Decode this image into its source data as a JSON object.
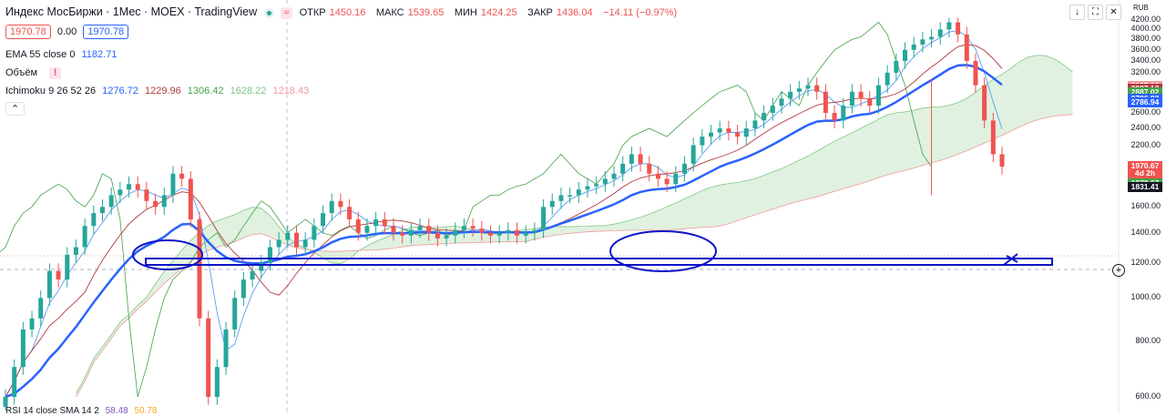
{
  "header": {
    "title": "Индекс МосБиржи · 1Мес · MOEX · TradingView",
    "ohlc": [
      {
        "label": "ОТКР",
        "value": "1450.16"
      },
      {
        "label": "МАКС",
        "value": "1539.65"
      },
      {
        "label": "МИН",
        "value": "1424.25"
      },
      {
        "label": "ЗАКР",
        "value": "1436.04"
      }
    ],
    "change": "−14.11 (−0.97%)",
    "wave_symbol": "≈",
    "currency": "RUB"
  },
  "order": {
    "sell": "1970.78",
    "spread": "0.00",
    "buy": "1970.78"
  },
  "indicators": {
    "ema": {
      "name": "EMA 55 close 0",
      "value": "1182.71"
    },
    "volume": {
      "name": "Объём",
      "warn": "!"
    },
    "ichimoku": {
      "name": "Ichimoku 9 26 52 26",
      "values": [
        "1276.72",
        "1229.96",
        "1306.42",
        "1628.22",
        "1218.43"
      ]
    },
    "rsi": {
      "name": "RSI 14 close SMA 14 2",
      "values": [
        "58.48",
        "50.78"
      ]
    }
  },
  "toolbar": {
    "down": "↓",
    "expand": "⛶",
    "close": "✕",
    "collapse": "⌃",
    "crosshair": "+"
  },
  "colors": {
    "up": "#26a69a",
    "down": "#ef5350",
    "ema": "#2962ff",
    "tenkan": "#5b9cf6",
    "kijun": "#b2383d",
    "lagging": "#43a047",
    "cloudUp": "#a5d6a7",
    "cloudDown": "#ef9a9a",
    "annotation": "#0d14c8"
  },
  "yaxis_ticks": [
    "4200.00",
    "4000.00",
    "3800.00",
    "3600.00",
    "3400.00",
    "3200.00",
    "2600.00",
    "2400.00",
    "2200.00",
    "1600.00",
    "1400.00",
    "1200.00",
    "1000.00",
    "800.00",
    "600.00"
  ],
  "price_tags": [
    {
      "text": "2987.12",
      "color": "#ef9a9a",
      "data_y": 2987.12
    },
    {
      "text": "2987.12",
      "color": "#b2383d",
      "data_y": 2945
    },
    {
      "text": "2887.02",
      "color": "#43a047",
      "data_y": 2887.02
    },
    {
      "text": "2796.83",
      "color": "#2962ff",
      "data_y": 2796.83
    },
    {
      "text": "2786.94",
      "color": "#2962ff",
      "data_y": 2735
    },
    {
      "text": "1970.67",
      "color": "#ef5350",
      "data_y": 1970.67
    },
    {
      "text": "4d 2h",
      "color": "#ef5350",
      "data_y": 1895
    },
    {
      "text": "1970.67",
      "color": "#43a047",
      "data_y": 1800
    },
    {
      "text": "1831.41",
      "color": "#131722",
      "data_y": 1770
    }
  ],
  "chart_data": {
    "type": "candlestick",
    "y_scale": {
      "min": 600,
      "max": 4200,
      "unit": "RUB"
    },
    "candle_closes": [
      600,
      700,
      850,
      900,
      1000,
      1150,
      1100,
      1250,
      1300,
      1450,
      1550,
      1600,
      1700,
      1750,
      1800,
      1750,
      1650,
      1600,
      1700,
      1900,
      1850,
      1500,
      900,
      600,
      700,
      850,
      1000,
      1100,
      1150,
      1200,
      1300,
      1350,
      1400,
      1300,
      1350,
      1450,
      1550,
      1650,
      1600,
      1500,
      1400,
      1450,
      1500,
      1450,
      1400,
      1380,
      1420,
      1450,
      1400,
      1360,
      1380,
      1420,
      1450,
      1430,
      1400,
      1380,
      1400,
      1420,
      1380,
      1400,
      1420,
      1600,
      1650,
      1700,
      1700,
      1750,
      1780,
      1800,
      1850,
      1900,
      2000,
      2100,
      2000,
      1900,
      1850,
      1800,
      1900,
      2000,
      2200,
      2300,
      2350,
      2400,
      2350,
      2300,
      2400,
      2500,
      2600,
      2700,
      2800,
      2900,
      2950,
      3000,
      2900,
      2600,
      2500,
      2700,
      2900,
      2800,
      2700,
      3000,
      3200,
      3400,
      3600,
      3700,
      3800,
      3850,
      4000,
      4150,
      3900,
      3400,
      3000,
      2500,
      2100,
      1970
    ]
  }
}
